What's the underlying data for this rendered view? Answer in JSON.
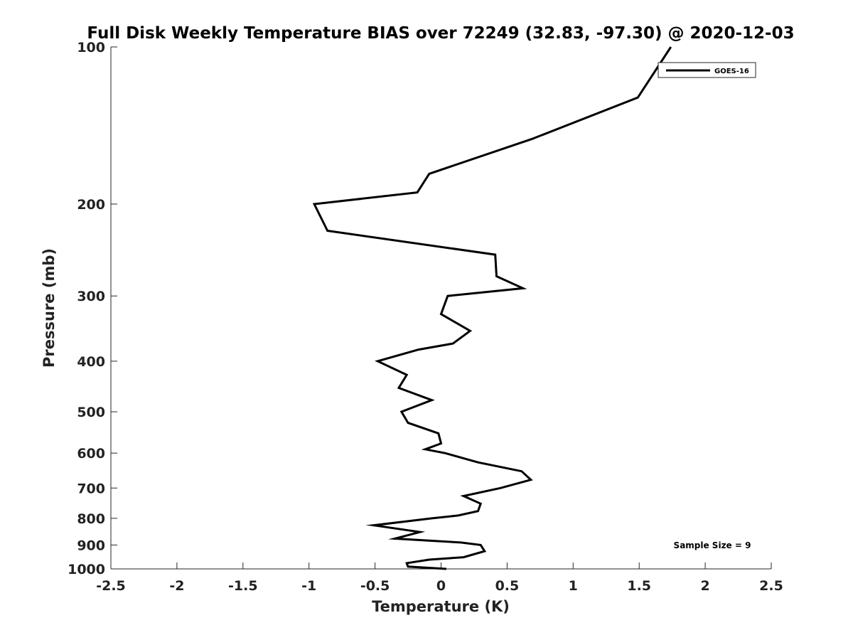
{
  "chart_data": {
    "type": "line",
    "title": "Full Disk Weekly Temperature BIAS over 72249 (32.83, -97.30) @ 2020-12-03",
    "xlabel": "Temperature (K)",
    "ylabel": "Pressure (mb)",
    "xlim": [
      -2.5,
      2.5
    ],
    "ylim": [
      1000,
      100
    ],
    "y_scale": "log",
    "y_direction": "reversed",
    "grid": false,
    "legend_position": "top-right",
    "x_ticks": [
      "-2.5",
      "-2",
      "-1.5",
      "-1",
      "-0.5",
      "0",
      "0.5",
      "1",
      "1.5",
      "2",
      "2.5"
    ],
    "y_ticks": [
      "100",
      "200",
      "300",
      "400",
      "500",
      "600",
      "700",
      "800",
      "900",
      "1000"
    ],
    "series": [
      {
        "name": "GOES-16",
        "color": "#000000",
        "points": [
          {
            "x": 1.74,
            "y": 100
          },
          {
            "x": 1.49,
            "y": 125
          },
          {
            "x": 0.69,
            "y": 150
          },
          {
            "x": -0.09,
            "y": 175
          },
          {
            "x": -0.18,
            "y": 190
          },
          {
            "x": -0.96,
            "y": 200
          },
          {
            "x": -0.86,
            "y": 225
          },
          {
            "x": 0.41,
            "y": 250
          },
          {
            "x": 0.42,
            "y": 275
          },
          {
            "x": 0.62,
            "y": 290
          },
          {
            "x": 0.05,
            "y": 300
          },
          {
            "x": 0.0,
            "y": 325
          },
          {
            "x": 0.22,
            "y": 350
          },
          {
            "x": 0.09,
            "y": 370
          },
          {
            "x": -0.17,
            "y": 380
          },
          {
            "x": -0.48,
            "y": 400
          },
          {
            "x": -0.26,
            "y": 425
          },
          {
            "x": -0.32,
            "y": 450
          },
          {
            "x": -0.07,
            "y": 475
          },
          {
            "x": -0.3,
            "y": 500
          },
          {
            "x": -0.25,
            "y": 525
          },
          {
            "x": -0.02,
            "y": 550
          },
          {
            "x": 0.0,
            "y": 575
          },
          {
            "x": -0.12,
            "y": 590
          },
          {
            "x": 0.03,
            "y": 600
          },
          {
            "x": 0.28,
            "y": 625
          },
          {
            "x": 0.61,
            "y": 650
          },
          {
            "x": 0.68,
            "y": 675
          },
          {
            "x": 0.45,
            "y": 700
          },
          {
            "x": 0.17,
            "y": 725
          },
          {
            "x": 0.3,
            "y": 750
          },
          {
            "x": 0.28,
            "y": 775
          },
          {
            "x": 0.13,
            "y": 790
          },
          {
            "x": -0.07,
            "y": 800
          },
          {
            "x": -0.51,
            "y": 825
          },
          {
            "x": -0.16,
            "y": 850
          },
          {
            "x": -0.35,
            "y": 875
          },
          {
            "x": 0.15,
            "y": 890
          },
          {
            "x": 0.3,
            "y": 900
          },
          {
            "x": 0.33,
            "y": 925
          },
          {
            "x": 0.17,
            "y": 950
          },
          {
            "x": -0.09,
            "y": 960
          },
          {
            "x": -0.26,
            "y": 975
          },
          {
            "x": -0.25,
            "y": 990
          },
          {
            "x": 0.04,
            "y": 1000
          }
        ]
      }
    ],
    "annotations": [
      "Sample Size = 9"
    ]
  }
}
